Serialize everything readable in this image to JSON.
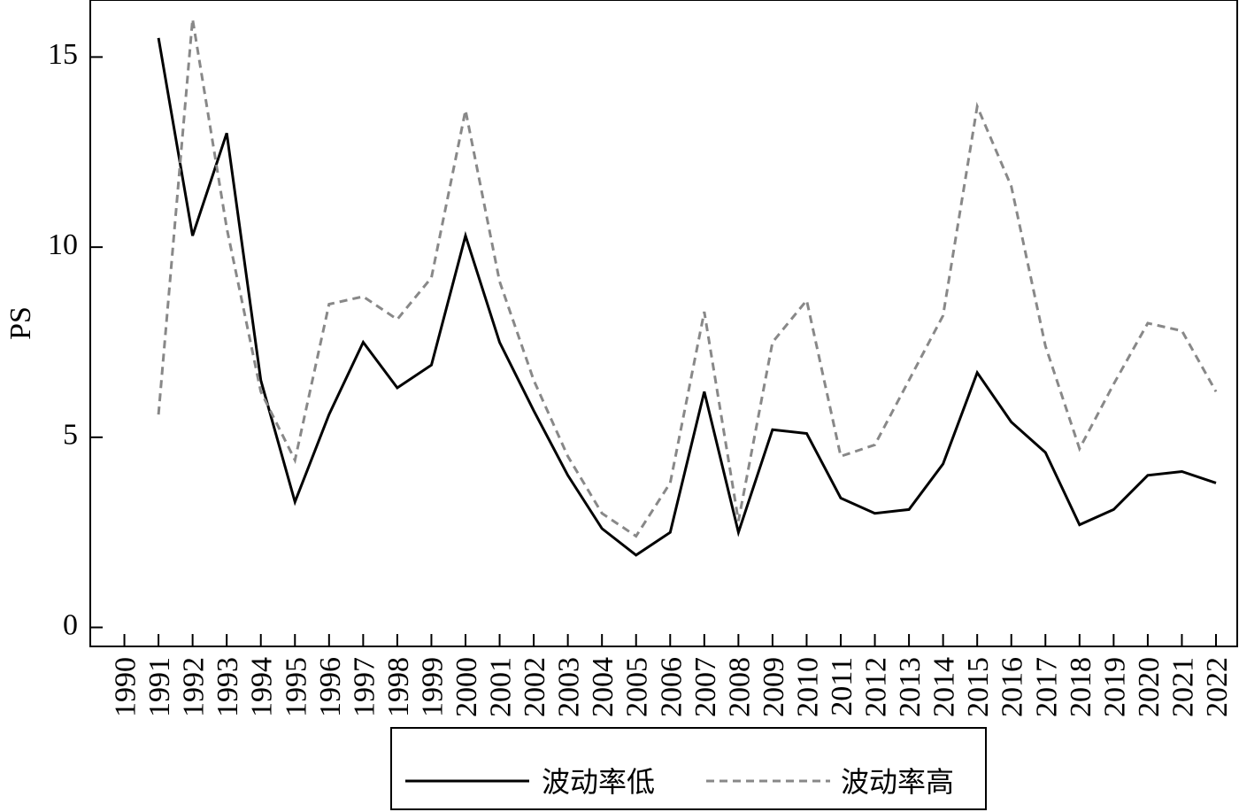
{
  "chart_data": {
    "type": "line",
    "title": "",
    "xlabel": "",
    "ylabel": "PS",
    "x": [
      1990,
      1991,
      1992,
      1993,
      1994,
      1995,
      1996,
      1997,
      1998,
      1999,
      2000,
      2001,
      2002,
      2003,
      2004,
      2005,
      2006,
      2007,
      2008,
      2009,
      2010,
      2011,
      2012,
      2013,
      2014,
      2015,
      2016,
      2017,
      2018,
      2019,
      2020,
      2021,
      2022
    ],
    "x_tick_labels": [
      "1990",
      "1991",
      "1992",
      "1993",
      "1994",
      "1995",
      "1996",
      "1997",
      "1998",
      "1999",
      "2000",
      "2001",
      "2002",
      "2003",
      "2004",
      "2005",
      "2006",
      "2007",
      "2008",
      "2009",
      "2010",
      "2011",
      "2012",
      "2013",
      "2014",
      "2015",
      "2016",
      "2017",
      "2018",
      "2019",
      "2020",
      "2021",
      "2022"
    ],
    "xlim": [
      1989,
      2022
    ],
    "ylim": [
      -0.5,
      16.5
    ],
    "yticks": [
      0,
      5,
      10,
      15
    ],
    "y_tick_labels": [
      "0",
      "5",
      "10",
      "15"
    ],
    "grid": false,
    "legend_position": "bottom",
    "series": [
      {
        "name": "波动率低",
        "style": "solid",
        "color": "#000000",
        "values": [
          null,
          15.5,
          10.3,
          13.0,
          6.5,
          3.3,
          5.6,
          7.5,
          6.3,
          6.9,
          10.3,
          7.5,
          5.7,
          4.0,
          2.6,
          1.9,
          2.5,
          6.2,
          2.5,
          5.2,
          5.1,
          3.4,
          3.0,
          3.1,
          4.3,
          6.7,
          5.4,
          4.6,
          2.7,
          3.1,
          4.0,
          4.1,
          3.8
        ]
      },
      {
        "name": "波动率高",
        "style": "dashed",
        "color": "#888888",
        "values": [
          null,
          5.6,
          16.0,
          10.5,
          6.2,
          4.4,
          8.5,
          8.7,
          8.1,
          9.2,
          13.6,
          9.1,
          6.5,
          4.5,
          3.0,
          2.4,
          3.8,
          8.3,
          2.8,
          7.5,
          8.6,
          4.5,
          4.8,
          6.5,
          8.2,
          13.7,
          11.6,
          7.4,
          4.7,
          6.4,
          8.0,
          7.8,
          6.2
        ]
      }
    ]
  }
}
